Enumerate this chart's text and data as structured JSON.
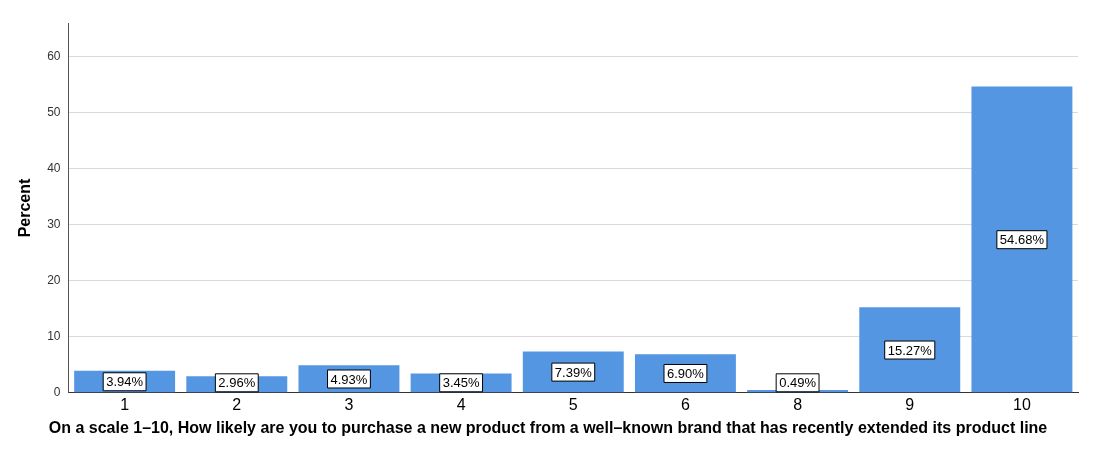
{
  "chart_data": {
    "type": "bar",
    "xlabel": "On a scale 1–10, How likely are you to purchase a new product from a well–known brand that has recently extended its product line",
    "ylabel": "Percent",
    "categories": [
      "1",
      "2",
      "3",
      "4",
      "5",
      "6",
      "8",
      "9",
      "10"
    ],
    "values": [
      3.94,
      2.96,
      4.93,
      3.45,
      7.39,
      6.9,
      0.49,
      15.27,
      54.68
    ],
    "value_labels": [
      "3.94%",
      "2.96%",
      "4.93%",
      "3.45%",
      "7.39%",
      "6.90%",
      "0.49%",
      "15.27%",
      "54.68%"
    ],
    "color": "#5596e3",
    "ylim": [
      0,
      66
    ],
    "yticks": [
      0,
      10,
      20,
      30,
      40,
      50,
      60
    ],
    "grid": "y",
    "legend": false
  }
}
